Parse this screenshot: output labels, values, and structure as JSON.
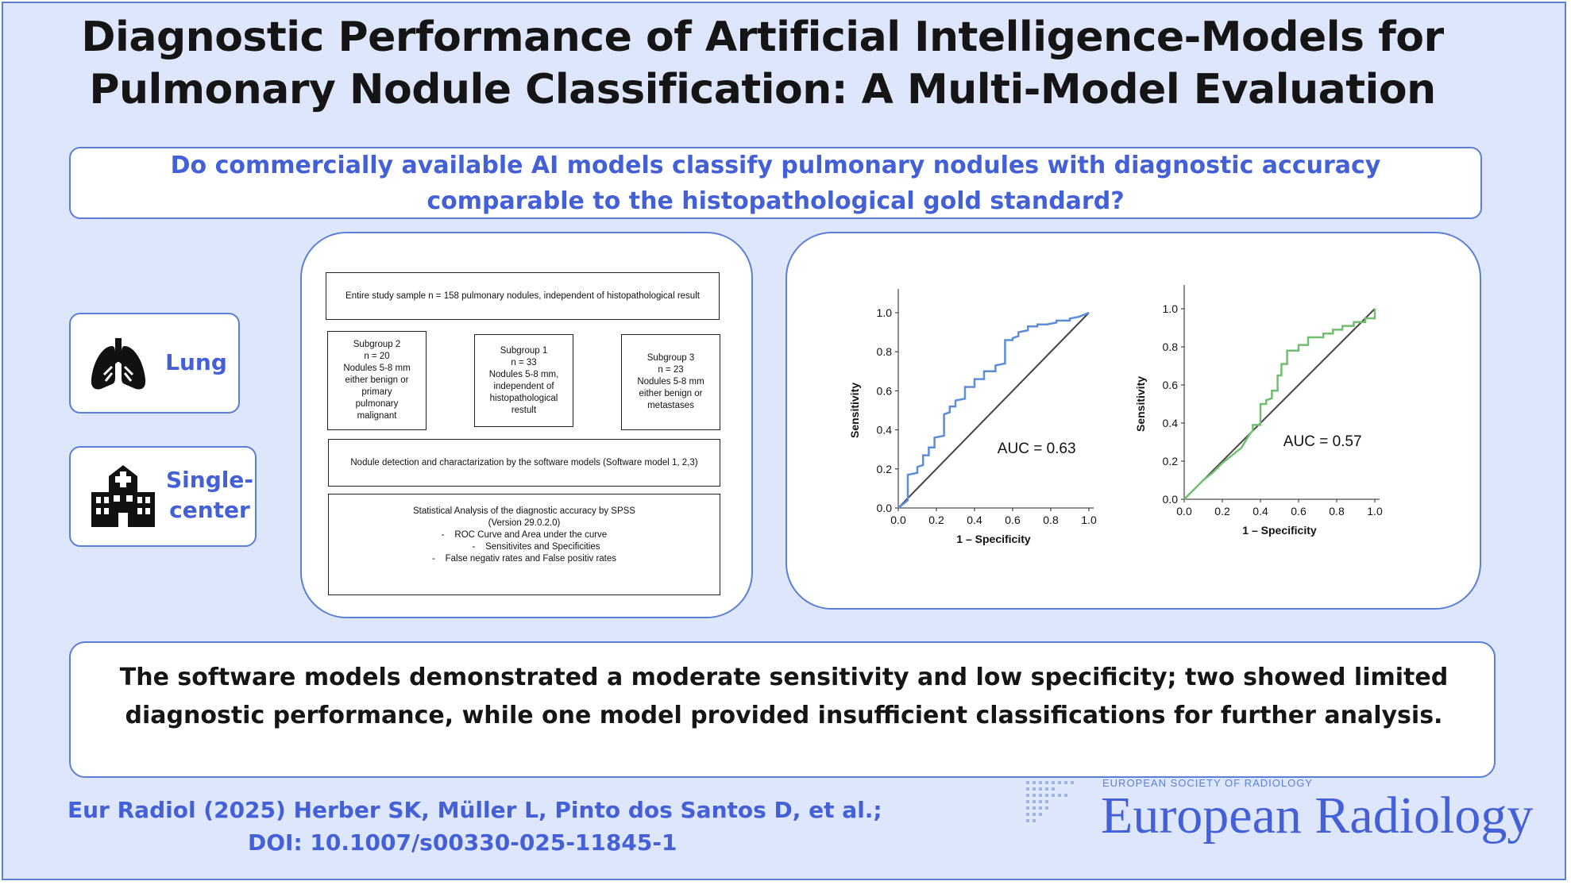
{
  "title": {
    "line1": "Diagnostic Performance of Artificial Intelligence-Models for",
    "line2": "Pulmonary Nodule Classification: A Multi-Model Evaluation"
  },
  "question": "Do commercially available AI models classify pulmonary nodules with diagnostic accuracy comparable to the histopathological gold standard?",
  "tags": {
    "organ": {
      "label": "Lung",
      "icon": "lungs-icon"
    },
    "setting": {
      "label_line1": "Single-",
      "label_line2": "center",
      "icon": "hospital-icon"
    }
  },
  "flowchart": {
    "entire_sample": "Entire study sample n = 158 pulmonary nodules, independent of histopathological result",
    "subgroup2": [
      "Subgroup 2",
      "n = 20",
      "Nodules 5-8 mm",
      "either benign or",
      "primary",
      "pulmonary",
      "malignant"
    ],
    "subgroup1": [
      "Subgroup 1",
      "n = 33",
      "Nodules 5-8 mm,",
      "independent of",
      "histopathological",
      "restult"
    ],
    "subgroup3": [
      "Subgroup 3",
      "n = 23",
      "Nodules 5-8 mm",
      "either benign or",
      "metastases"
    ],
    "detection": "Nodule detection and charactarization by the software models (Software model 1, 2,3)",
    "stats": {
      "line1": "Statistical Analysis of the diagnostic accuracy by SPSS",
      "line2": "(Version 29.0.2.0)",
      "bullets": [
        "ROC Curve and Area under the curve",
        "Sensitivites and Specificities",
        "False negativ rates and False positiv rates"
      ]
    }
  },
  "chart_data": [
    {
      "type": "line",
      "xlabel": "1 – Specificity",
      "ylabel": "Sensitivity",
      "xlim": [
        0,
        1
      ],
      "ylim": [
        0,
        1
      ],
      "x_ticks": [
        "0.0",
        "0.2",
        "0.4",
        "0.6",
        "0.8",
        "1.0"
      ],
      "y_ticks": [
        "0.0",
        "0.2",
        "0.4",
        "0.6",
        "0.8",
        "1.0"
      ],
      "annotation": "AUC = 0.63",
      "color": "#5b8dd9",
      "series": [
        {
          "x": [
            0,
            0.05,
            0.05,
            0.1,
            0.1,
            0.13,
            0.13,
            0.16,
            0.16,
            0.19,
            0.19,
            0.24,
            0.24,
            0.27,
            0.27,
            0.3,
            0.3,
            0.35,
            0.35,
            0.4,
            0.4,
            0.45,
            0.45,
            0.51,
            0.51,
            0.56,
            0.56,
            0.6,
            0.6,
            0.63,
            0.63,
            0.68,
            0.68,
            0.73,
            0.73,
            0.78,
            0.78,
            0.83,
            0.83,
            0.9,
            0.9,
            0.95,
            1.0
          ],
          "y": [
            0,
            0.04,
            0.17,
            0.18,
            0.21,
            0.22,
            0.27,
            0.27,
            0.31,
            0.31,
            0.36,
            0.37,
            0.48,
            0.49,
            0.52,
            0.52,
            0.55,
            0.56,
            0.62,
            0.62,
            0.66,
            0.66,
            0.7,
            0.7,
            0.73,
            0.74,
            0.86,
            0.86,
            0.87,
            0.88,
            0.9,
            0.91,
            0.93,
            0.93,
            0.94,
            0.94,
            0.94,
            0.95,
            0.96,
            0.96,
            0.97,
            0.98,
            1.0
          ]
        }
      ]
    },
    {
      "type": "line",
      "xlabel": "1 – Specificity",
      "ylabel": "Sensitivity",
      "xlim": [
        0,
        1
      ],
      "ylim": [
        0,
        1
      ],
      "x_ticks": [
        "0.0",
        "0.2",
        "0.4",
        "0.6",
        "0.8",
        "1.0"
      ],
      "y_ticks": [
        "0.0",
        "0.2",
        "0.4",
        "0.6",
        "0.8",
        "1.0"
      ],
      "annotation": "AUC = 0.57",
      "color": "#6fbf6f",
      "series": [
        {
          "x": [
            0,
            0.05,
            0.1,
            0.15,
            0.2,
            0.25,
            0.3,
            0.33,
            0.35,
            0.36,
            0.36,
            0.4,
            0.4,
            0.43,
            0.43,
            0.46,
            0.46,
            0.49,
            0.49,
            0.51,
            0.51,
            0.54,
            0.54,
            0.6,
            0.6,
            0.65,
            0.65,
            0.73,
            0.73,
            0.78,
            0.78,
            0.83,
            0.83,
            0.89,
            0.89,
            0.95,
            0.95,
            1.0,
            1.0
          ],
          "y": [
            0,
            0.05,
            0.1,
            0.14,
            0.19,
            0.23,
            0.27,
            0.32,
            0.35,
            0.36,
            0.39,
            0.39,
            0.5,
            0.5,
            0.52,
            0.53,
            0.57,
            0.57,
            0.65,
            0.65,
            0.71,
            0.71,
            0.78,
            0.78,
            0.81,
            0.81,
            0.85,
            0.85,
            0.87,
            0.87,
            0.89,
            0.89,
            0.91,
            0.91,
            0.93,
            0.93,
            0.95,
            0.95,
            1.0
          ]
        }
      ]
    }
  ],
  "conclusion": "The software models demonstrated a moderate sensitivity and low specificity; two showed limited diagnostic performance, while one model provided insufficient classifications for further analysis.",
  "citation": {
    "line1": "Eur Radiol (2025) Herber SK, Müller L, Pinto dos Santos D, et al.;",
    "line2": "DOI: 10.1007/s00330-025-11845-1"
  },
  "journal": {
    "society": "EUROPEAN SOCIETY OF RADIOLOGY",
    "name": "European Radiology"
  }
}
